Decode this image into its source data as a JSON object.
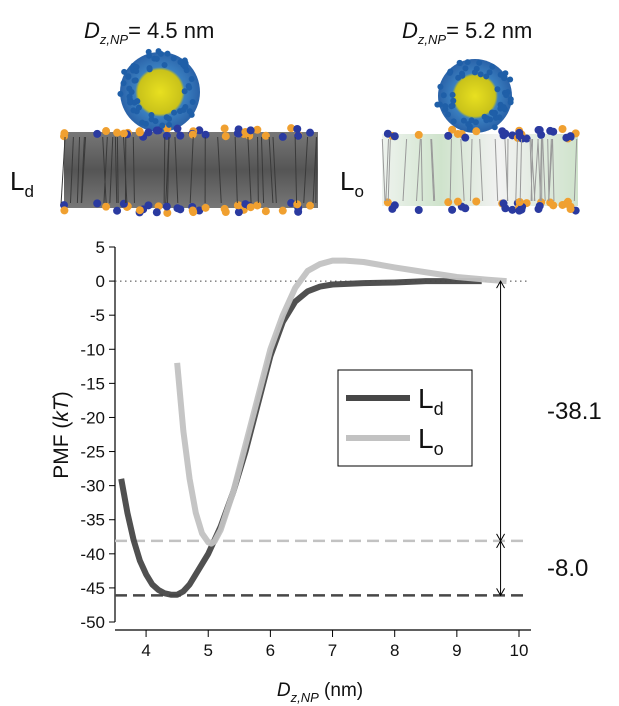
{
  "header": {
    "panels": [
      {
        "symbol": "D",
        "subscript": "z,NP",
        "text": "= 4.5 nm",
        "phase": "L",
        "phase_subscript": "d"
      },
      {
        "symbol": "D",
        "subscript": "z,NP",
        "text": "= 5.2 nm",
        "phase": "L",
        "phase_subscript": "o"
      }
    ]
  },
  "chart_data": {
    "type": "line",
    "x_label": {
      "symbol": "D",
      "subscript": "z,NP",
      "text": " (nm)"
    },
    "y_label": {
      "before": "PMF (",
      "italic": "kT",
      "after": ")"
    },
    "xlim": [
      3.5,
      10
    ],
    "xticks": [
      4,
      5,
      6,
      7,
      8,
      9,
      10
    ],
    "ylim": [
      -50,
      5
    ],
    "yticks": [
      5,
      0,
      -5,
      -10,
      -15,
      -20,
      -25,
      -30,
      -35,
      -40,
      -45,
      -50
    ],
    "series": [
      {
        "name": "L",
        "name_subscript": "d",
        "color": "#474747",
        "x": [
          3.6,
          3.7,
          3.8,
          3.9,
          4.0,
          4.1,
          4.2,
          4.3,
          4.4,
          4.5,
          4.6,
          4.7,
          4.8,
          4.9,
          5.0,
          5.2,
          5.4,
          5.6,
          5.8,
          6.0,
          6.2,
          6.4,
          6.6,
          6.8,
          7.0,
          7.5,
          8.0,
          8.5,
          9.0,
          9.4
        ],
        "values": [
          -29,
          -34,
          -38,
          -41,
          -43,
          -44.5,
          -45.3,
          -45.8,
          -46,
          -46,
          -45.5,
          -44.5,
          -43,
          -41.5,
          -40,
          -36,
          -31,
          -25,
          -18,
          -11,
          -6,
          -3,
          -1.5,
          -0.8,
          -0.5,
          -0.3,
          -0.2,
          0,
          0,
          0
        ]
      },
      {
        "name": "L",
        "name_subscript": "o",
        "color": "#c2c2c2",
        "x": [
          4.5,
          4.6,
          4.7,
          4.8,
          4.9,
          5.0,
          5.05,
          5.1,
          5.2,
          5.4,
          5.6,
          5.8,
          6.0,
          6.2,
          6.4,
          6.6,
          6.8,
          7.0,
          7.2,
          7.5,
          8.0,
          8.5,
          9.0,
          9.5,
          9.8
        ],
        "values": [
          -12,
          -22,
          -29,
          -34,
          -37,
          -38.3,
          -38.5,
          -38.2,
          -36.5,
          -31,
          -24,
          -17,
          -10,
          -5,
          -1,
          1.5,
          2.5,
          3,
          3,
          2.8,
          2,
          1.3,
          0.6,
          0.2,
          0
        ]
      }
    ],
    "reference_lines": [
      {
        "value": -38.1,
        "color": "#c2c2c2"
      },
      {
        "value": -46.1,
        "color": "#474747"
      }
    ],
    "zero_line": 0,
    "annotations": [
      {
        "label": "-38.1",
        "y": [
          0,
          -38.1
        ]
      },
      {
        "label": "-8.0",
        "y": [
          -38.1,
          -46.1
        ]
      }
    ]
  }
}
